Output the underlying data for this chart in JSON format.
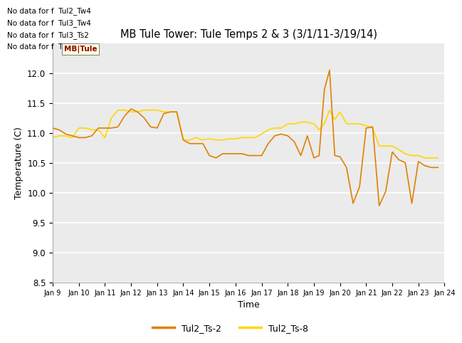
{
  "title": "MB Tule Tower: Tule Temps 2 & 3 (3/1/11-3/19/14)",
  "xlabel": "Time",
  "ylabel": "Temperature (C)",
  "xlim": [
    9,
    24
  ],
  "ylim": [
    8.5,
    12.5
  ],
  "xtick_labels": [
    "Jan 9",
    "Jan 10",
    "Jan 11",
    "Jan 12",
    "Jan 13",
    "Jan 14",
    "Jan 15",
    "Jan 16",
    "Jan 17",
    "Jan 18",
    "Jan 19",
    "Jan 20",
    "Jan 21",
    "Jan 22",
    "Jan 23",
    "Jan 24"
  ],
  "xtick_positions": [
    9,
    10,
    11,
    12,
    13,
    14,
    15,
    16,
    17,
    18,
    19,
    20,
    21,
    22,
    23,
    24
  ],
  "ytick_positions": [
    8.5,
    9.0,
    9.5,
    10.0,
    10.5,
    11.0,
    11.5,
    12.0
  ],
  "color_ts2": "#E08000",
  "color_ts8": "#FFD700",
  "bg_color": "#EBEBEB",
  "grid_color": "white",
  "no_data_texts": [
    "No data for f  Tul2_Tw4",
    "No data for f  Tul3_Tw4",
    "No data for f  Tul3_Ts2",
    "No data for f  Tul3_Ts5"
  ],
  "legend_label_ts2": "Tul2_Ts-2",
  "legend_label_ts8": "Tul2_Ts-8",
  "ts2_x": [
    9.0,
    9.25,
    9.5,
    9.75,
    10.0,
    10.25,
    10.5,
    10.75,
    11.0,
    11.25,
    11.5,
    11.75,
    12.0,
    12.25,
    12.5,
    12.75,
    13.0,
    13.25,
    13.5,
    13.75,
    14.0,
    14.25,
    14.5,
    14.75,
    15.0,
    15.25,
    15.5,
    15.75,
    16.0,
    16.25,
    16.5,
    16.75,
    17.0,
    17.25,
    17.5,
    17.75,
    18.0,
    18.25,
    18.5,
    18.75,
    19.0,
    19.2,
    19.4,
    19.6,
    19.8,
    20.0,
    20.25,
    20.5,
    20.75,
    21.0,
    21.25,
    21.5,
    21.75,
    22.0,
    22.25,
    22.5,
    22.75,
    23.0,
    23.25,
    23.5,
    23.75
  ],
  "ts2_y": [
    11.08,
    11.05,
    10.98,
    10.95,
    10.92,
    10.92,
    10.95,
    11.08,
    11.08,
    11.08,
    11.1,
    11.28,
    11.4,
    11.35,
    11.25,
    11.1,
    11.08,
    11.32,
    11.35,
    11.35,
    10.88,
    10.82,
    10.82,
    10.82,
    10.62,
    10.58,
    10.65,
    10.65,
    10.65,
    10.65,
    10.62,
    10.62,
    10.62,
    10.82,
    10.95,
    10.98,
    10.95,
    10.85,
    10.62,
    10.95,
    10.58,
    10.62,
    11.72,
    12.05,
    10.62,
    10.6,
    10.42,
    9.82,
    10.1,
    11.08,
    11.1,
    9.78,
    10.02,
    10.68,
    10.55,
    10.5,
    9.82,
    10.52,
    10.45,
    10.42,
    10.42
  ],
  "ts8_x": [
    9.0,
    9.25,
    9.5,
    9.75,
    10.0,
    10.25,
    10.5,
    10.75,
    11.0,
    11.25,
    11.5,
    11.75,
    12.0,
    12.25,
    12.5,
    12.75,
    13.0,
    13.25,
    13.5,
    13.75,
    14.0,
    14.25,
    14.5,
    14.75,
    15.0,
    15.25,
    15.5,
    15.75,
    16.0,
    16.25,
    16.5,
    16.75,
    17.0,
    17.25,
    17.5,
    17.75,
    18.0,
    18.25,
    18.5,
    18.75,
    19.0,
    19.2,
    19.4,
    19.6,
    19.8,
    20.0,
    20.25,
    20.5,
    20.75,
    21.0,
    21.25,
    21.5,
    21.75,
    22.0,
    22.25,
    22.5,
    22.75,
    23.0,
    23.25,
    23.5,
    23.75
  ],
  "ts8_y": [
    10.92,
    10.95,
    10.95,
    10.92,
    11.08,
    11.08,
    11.05,
    11.05,
    10.92,
    11.25,
    11.38,
    11.38,
    11.35,
    11.35,
    11.38,
    11.38,
    11.38,
    11.35,
    11.35,
    11.35,
    10.88,
    10.88,
    10.92,
    10.88,
    10.9,
    10.88,
    10.88,
    10.9,
    10.9,
    10.92,
    10.92,
    10.92,
    10.98,
    11.05,
    11.08,
    11.08,
    11.15,
    11.15,
    11.18,
    11.18,
    11.15,
    11.05,
    11.15,
    11.38,
    11.22,
    11.35,
    11.15,
    11.15,
    11.15,
    11.12,
    11.08,
    10.78,
    10.78,
    10.78,
    10.72,
    10.65,
    10.62,
    10.62,
    10.58,
    10.58,
    10.58
  ]
}
